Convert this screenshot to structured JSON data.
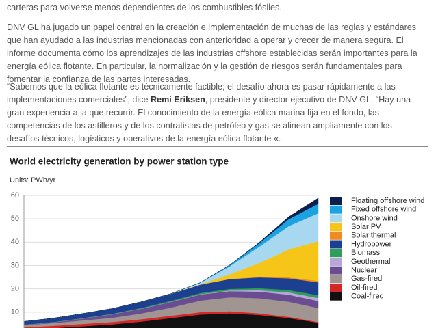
{
  "article": {
    "paragraphs": [
      {
        "text": "carteras para volverse menos dependientes de los combustibles fósiles."
      },
      {
        "text": "DNV GL ha jugado un papel central en la creación e implementación de muchas de las reglas y estándares que han ayudado a las industrias mencionadas con anterioridad a operar y crecer de manera segura. El informe documenta cómo los aprendizajes de las industrias offshore establecidas serán importantes para la energía eólica flotante. En particular, la normalización y la gestión de riesgos serán fundamentales para fomentar la confianza de las partes interesadas."
      },
      {
        "before": "“Sabemos que la eólica flotante es técnicamente factible; el desafío ahora es pasar rápidamente a las implementaciones comerciales”, dice ",
        "bold": "Remi Eriksen",
        "after": ", presidente y director ejecutivo de DNV GL. “Hay una gran experiencia a la que recurrir. El conocimiento de la energía eólica marina fija en el fondo, las competencias de los astilleros y de los contratistas de petróleo y gas se alinean ampliamente con los desafíos técnicos, logísticos y operativos de la energía eólica flotante «."
      }
    ]
  },
  "chart_data": {
    "type": "stacked_area",
    "title": "World electricity generation by power station type",
    "units": "Units: PWh/yr",
    "categories": [
      null,
      null,
      null,
      null,
      null,
      null,
      null,
      null,
      null,
      null,
      null
    ],
    "ylim": [
      0,
      60
    ],
    "yticks": [
      10,
      20,
      30,
      40,
      50,
      60
    ],
    "grid": true,
    "legend": "right",
    "series": [
      {
        "name": "Floating offshore wind",
        "color": "#0d1f4d",
        "values": [
          0,
          0,
          0,
          0,
          0,
          0,
          0,
          0.05,
          0.3,
          1,
          2.5
        ]
      },
      {
        "name": "Fixed offshore wind",
        "color": "#1aa3e0",
        "values": [
          0,
          0,
          0,
          0,
          0,
          0,
          0.05,
          0.5,
          1.5,
          3,
          4
        ]
      },
      {
        "name": "Onshore wind",
        "color": "#a8d8f0",
        "values": [
          0,
          0,
          0,
          0,
          0,
          0.05,
          0.7,
          3.5,
          7,
          10,
          12
        ]
      },
      {
        "name": "Solar PV",
        "color": "#f5c518",
        "values": [
          0,
          0,
          0,
          0,
          0,
          0,
          0.1,
          2,
          6,
          12,
          17
        ]
      },
      {
        "name": "Solar thermal",
        "color": "#f08a24",
        "values": [
          0,
          0,
          0,
          0,
          0,
          0,
          0,
          0.05,
          0.2,
          0.4,
          0.6
        ]
      },
      {
        "name": "Hydropower",
        "color": "#1d3f8f",
        "values": [
          1.3,
          1.6,
          1.9,
          2.2,
          2.6,
          3,
          3.6,
          4.2,
          4.6,
          5,
          5.5
        ]
      },
      {
        "name": "Biomass",
        "color": "#2e9e5b",
        "values": [
          0.1,
          0.1,
          0.15,
          0.2,
          0.3,
          0.4,
          0.5,
          0.7,
          0.9,
          1,
          1.2
        ]
      },
      {
        "name": "Geothermal",
        "color": "#b9a6d6",
        "values": [
          0.02,
          0.03,
          0.05,
          0.06,
          0.08,
          0.1,
          0.15,
          0.3,
          0.6,
          1,
          1.3
        ]
      },
      {
        "name": "Nuclear",
        "color": "#6a4c93",
        "values": [
          0.1,
          0.3,
          0.8,
          1.5,
          2,
          2.4,
          2.6,
          2.6,
          2.8,
          3,
          3
        ]
      },
      {
        "name": "Gas-fired",
        "color": "#a09590",
        "values": [
          1,
          1.2,
          1.5,
          1.8,
          2.5,
          3.5,
          5,
          6,
          6.5,
          6.5,
          6
        ]
      },
      {
        "name": "Oil-fired",
        "color": "#d62728",
        "values": [
          1,
          1,
          1,
          1,
          1,
          1,
          1,
          0.9,
          0.7,
          0.5,
          0.3
        ]
      },
      {
        "name": "Coal-fired",
        "color": "#111111",
        "values": [
          2.5,
          3.2,
          4,
          4.8,
          6,
          7.5,
          9,
          9.5,
          8.8,
          7.5,
          5.5
        ]
      }
    ]
  }
}
